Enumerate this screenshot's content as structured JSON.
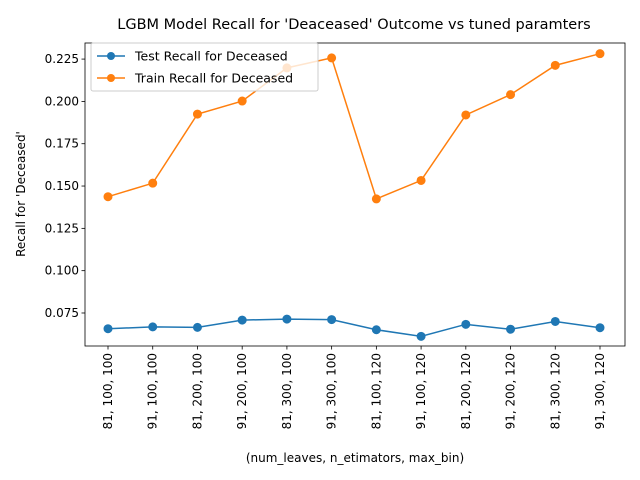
{
  "chart_data": {
    "type": "line",
    "title": "LGBM Model Recall for 'Deaceased' Outcome vs tuned paramters",
    "xlabel": "(num_leaves, n_etimators, max_bin)",
    "ylabel": "Recall for 'Deceased'",
    "categories": [
      "81, 100, 100",
      "91, 100, 100",
      "81, 200, 100",
      "91, 200, 100",
      "81, 300, 100",
      "91, 300, 100",
      "81, 100, 120",
      "91, 100, 120",
      "81, 200, 120",
      "91, 200, 120",
      "81, 300, 120",
      "91, 300, 120"
    ],
    "yticks": [
      "0.075",
      "0.100",
      "0.125",
      "0.150",
      "0.175",
      "0.200",
      "0.225"
    ],
    "ylim": [
      0.0555,
      0.2345
    ],
    "grid": false,
    "legend_position": "upper-left",
    "series": [
      {
        "name": "Test Recall for Deceased",
        "color": "#1f77b4",
        "values": [
          0.0657,
          0.0668,
          0.0665,
          0.0708,
          0.0714,
          0.0711,
          0.0651,
          0.0612,
          0.0683,
          0.0654,
          0.07,
          0.0663
        ]
      },
      {
        "name": "Train Recall for Deceased",
        "color": "#ff7f0e",
        "values": [
          0.1437,
          0.1517,
          0.1925,
          0.2002,
          0.2198,
          0.2257,
          0.1424,
          0.1533,
          0.192,
          0.204,
          0.2213,
          0.2282
        ]
      }
    ]
  }
}
